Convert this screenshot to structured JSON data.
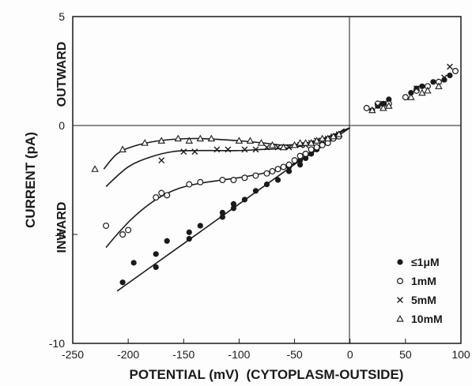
{
  "chart_data": {
    "type": "scatter",
    "xlabel": "POTENTIAL (mV)  (CYTOPLASM-OUTSIDE)",
    "ylabel": "CURRENT (pA)",
    "ylabel_upper": "OUTWARD",
    "ylabel_lower": "INWARD",
    "xlim": [
      -250,
      100
    ],
    "ylim": [
      -10,
      5
    ],
    "x_ticks": [
      -250,
      -200,
      -150,
      -100,
      -50,
      0,
      50,
      100
    ],
    "y_ticks": [
      -10,
      -5,
      0,
      5
    ],
    "grid": false,
    "legend_position": "bottom-right",
    "series": [
      {
        "name": "≤1μM",
        "marker": "filled-circle",
        "points": [
          [
            -205,
            -7.2
          ],
          [
            -195,
            -6.3
          ],
          [
            -175,
            -6.5
          ],
          [
            -175,
            -5.9
          ],
          [
            -165,
            -5.3
          ],
          [
            -145,
            -5.2
          ],
          [
            -145,
            -4.9
          ],
          [
            -135,
            -4.6
          ],
          [
            -115,
            -4.2
          ],
          [
            -115,
            -4.0
          ],
          [
            -105,
            -3.8
          ],
          [
            -105,
            -3.6
          ],
          [
            -95,
            -3.4
          ],
          [
            -85,
            -3.0
          ],
          [
            -75,
            -2.7
          ],
          [
            -65,
            -2.5
          ],
          [
            -55,
            -2.1
          ],
          [
            -55,
            -1.9
          ],
          [
            -45,
            -1.8
          ],
          [
            -45,
            -1.6
          ],
          [
            -40,
            -1.5
          ],
          [
            -35,
            -1.3
          ],
          [
            -30,
            -1.1
          ],
          [
            -25,
            -0.9
          ],
          [
            -20,
            -0.8
          ],
          [
            -15,
            -0.6
          ],
          [
            -10,
            -0.5
          ],
          [
            20,
            0.7
          ],
          [
            25,
            0.9
          ],
          [
            30,
            1.0
          ],
          [
            35,
            1.2
          ],
          [
            55,
            1.5
          ],
          [
            60,
            1.7
          ],
          [
            65,
            1.8
          ],
          [
            75,
            2.0
          ],
          [
            85,
            2.1
          ],
          [
            90,
            2.3
          ],
          [
            95,
            2.5
          ]
        ]
      },
      {
        "name": "1mM",
        "marker": "open-circle",
        "points": [
          [
            -220,
            -4.6
          ],
          [
            -205,
            -5.0
          ],
          [
            -200,
            -4.8
          ],
          [
            -175,
            -3.3
          ],
          [
            -170,
            -3.1
          ],
          [
            -165,
            -3.2
          ],
          [
            -145,
            -2.7
          ],
          [
            -135,
            -2.6
          ],
          [
            -115,
            -2.5
          ],
          [
            -105,
            -2.5
          ],
          [
            -95,
            -2.4
          ],
          [
            -85,
            -2.3
          ],
          [
            -75,
            -2.2
          ],
          [
            -70,
            -2.1
          ],
          [
            -65,
            -2.0
          ],
          [
            -60,
            -1.9
          ],
          [
            -55,
            -1.8
          ],
          [
            -50,
            -1.6
          ],
          [
            -45,
            -1.4
          ],
          [
            -40,
            -1.3
          ],
          [
            -35,
            -1.1
          ],
          [
            -30,
            -1.0
          ],
          [
            -25,
            -0.9
          ],
          [
            -20,
            -0.8
          ],
          [
            -15,
            -0.6
          ],
          [
            -10,
            -0.5
          ],
          [
            15,
            0.8
          ],
          [
            25,
            1.0
          ],
          [
            35,
            1.0
          ],
          [
            50,
            1.3
          ],
          [
            60,
            1.6
          ],
          [
            70,
            1.8
          ],
          [
            80,
            2.0
          ],
          [
            95,
            2.5
          ]
        ]
      },
      {
        "name": "5mM",
        "marker": "x",
        "points": [
          [
            -170,
            -1.6
          ],
          [
            -150,
            -1.2
          ],
          [
            -140,
            -1.2
          ],
          [
            -120,
            -1.1
          ],
          [
            -110,
            -1.1
          ],
          [
            -95,
            -1.1
          ],
          [
            -85,
            -1.1
          ],
          [
            -75,
            -1.0
          ],
          [
            -65,
            -1.0
          ],
          [
            -55,
            -1.0
          ],
          [
            -45,
            -0.9
          ],
          [
            -40,
            -0.9
          ],
          [
            -35,
            -0.8
          ],
          [
            -30,
            -0.7
          ],
          [
            -25,
            -0.7
          ],
          [
            -20,
            -0.6
          ],
          [
            -15,
            -0.5
          ],
          [
            -10,
            -0.4
          ],
          [
            25,
            0.9
          ],
          [
            30,
            1.0
          ],
          [
            60,
            1.7
          ],
          [
            85,
            2.2
          ],
          [
            90,
            2.7
          ]
        ]
      },
      {
        "name": "10mM",
        "marker": "open-triangle",
        "points": [
          [
            -230,
            -2.0
          ],
          [
            -205,
            -1.1
          ],
          [
            -185,
            -0.8
          ],
          [
            -170,
            -0.7
          ],
          [
            -155,
            -0.6
          ],
          [
            -145,
            -0.7
          ],
          [
            -135,
            -0.6
          ],
          [
            -125,
            -0.6
          ],
          [
            -100,
            -0.7
          ],
          [
            -90,
            -0.7
          ],
          [
            -80,
            -0.8
          ],
          [
            -70,
            -0.9
          ],
          [
            -60,
            -1.0
          ],
          [
            -50,
            -0.9
          ],
          [
            -45,
            -0.8
          ],
          [
            -40,
            -0.8
          ],
          [
            -35,
            -0.8
          ],
          [
            -30,
            -0.7
          ],
          [
            -25,
            -0.6
          ],
          [
            -20,
            -0.6
          ],
          [
            -15,
            -0.5
          ],
          [
            -10,
            -0.4
          ],
          [
            20,
            0.7
          ],
          [
            30,
            0.8
          ],
          [
            35,
            0.9
          ],
          [
            55,
            1.3
          ],
          [
            65,
            1.5
          ],
          [
            70,
            1.6
          ],
          [
            80,
            1.8
          ]
        ]
      }
    ],
    "fit_curves": [
      {
        "name": "≤1μM",
        "points": [
          [
            -210,
            -7.6
          ],
          [
            -5,
            -0.15
          ]
        ]
      },
      {
        "name": "1mM",
        "points": [
          [
            -220,
            -5.6
          ],
          [
            -210,
            -5.0
          ],
          [
            -195,
            -4.2
          ],
          [
            -175,
            -3.4
          ],
          [
            -155,
            -2.9
          ],
          [
            -135,
            -2.65
          ],
          [
            -115,
            -2.5
          ],
          [
            -95,
            -2.35
          ],
          [
            -75,
            -2.15
          ],
          [
            -55,
            -1.85
          ],
          [
            -40,
            -1.45
          ],
          [
            -25,
            -0.95
          ],
          [
            -10,
            -0.45
          ],
          [
            0,
            -0.1
          ]
        ]
      },
      {
        "name": "5mM",
        "points": [
          [
            -220,
            -2.8
          ],
          [
            -200,
            -1.9
          ],
          [
            -180,
            -1.45
          ],
          [
            -160,
            -1.2
          ],
          [
            -140,
            -1.15
          ],
          [
            -120,
            -1.15
          ],
          [
            -100,
            -1.15
          ],
          [
            -80,
            -1.1
          ],
          [
            -60,
            -1.05
          ],
          [
            -45,
            -0.95
          ],
          [
            -30,
            -0.75
          ],
          [
            -15,
            -0.45
          ],
          [
            0,
            -0.1
          ]
        ]
      },
      {
        "name": "10mM",
        "points": [
          [
            -222,
            -2.0
          ],
          [
            -210,
            -1.3
          ],
          [
            -195,
            -0.95
          ],
          [
            -175,
            -0.72
          ],
          [
            -155,
            -0.62
          ],
          [
            -135,
            -0.6
          ],
          [
            -115,
            -0.65
          ],
          [
            -95,
            -0.72
          ],
          [
            -75,
            -0.82
          ],
          [
            -60,
            -0.9
          ],
          [
            -45,
            -0.85
          ],
          [
            -30,
            -0.7
          ],
          [
            -15,
            -0.42
          ],
          [
            0,
            -0.1
          ]
        ]
      }
    ],
    "legend": [
      {
        "marker": "filled-circle",
        "label": "≤1μM"
      },
      {
        "marker": "open-circle",
        "label": "1mM"
      },
      {
        "marker": "x",
        "label": "5mM"
      },
      {
        "marker": "open-triangle",
        "label": "10mM"
      }
    ]
  }
}
